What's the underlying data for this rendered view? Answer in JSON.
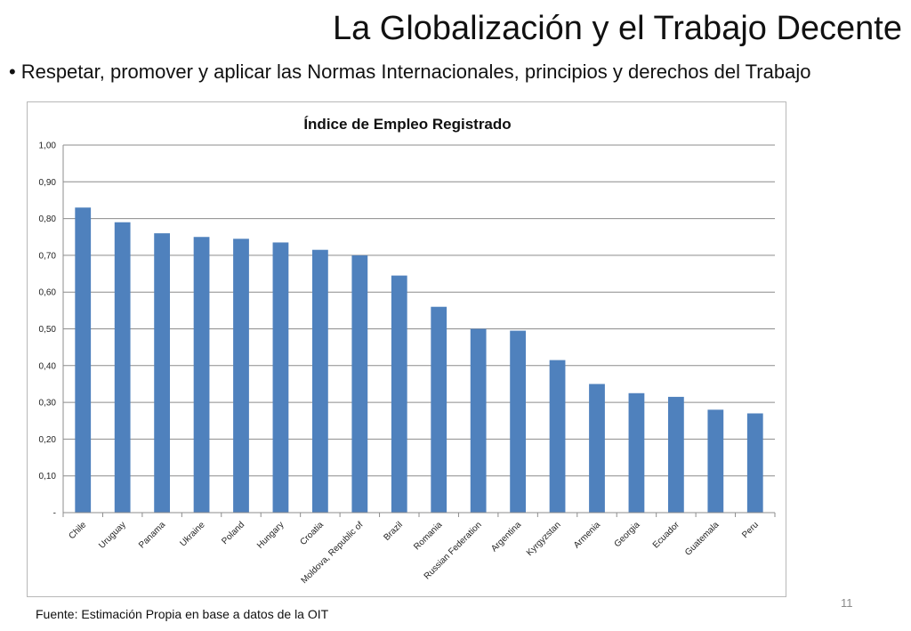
{
  "slide": {
    "title": "La Globalización y el Trabajo Decente",
    "bullet_symbol": "•",
    "bullet": "Respetar, promover y aplicar las Normas Internacionales, principios y derechos del Trabajo",
    "footer": "Fuente: Estimación Propia en base a datos de la OIT",
    "page_number": "11"
  },
  "chart_data": {
    "type": "bar",
    "title": "Índice de Empleo Registrado",
    "xlabel": "",
    "ylabel": "",
    "categories": [
      "Chile",
      "Uruguay",
      "Panama",
      "Ukraine",
      "Poland",
      "Hungary",
      "Croatia",
      "Moldova, Republic of",
      "Brazil",
      "Romania",
      "Russian Federation",
      "Argentina",
      "Kyrgyzstan",
      "Armenia",
      "Georgia",
      "Ecuador",
      "Guatemala",
      "Peru"
    ],
    "values": [
      0.83,
      0.79,
      0.76,
      0.75,
      0.745,
      0.735,
      0.715,
      0.7,
      0.645,
      0.56,
      0.5,
      0.495,
      0.415,
      0.35,
      0.325,
      0.315,
      0.28,
      0.27
    ],
    "ylim": [
      0,
      1
    ],
    "yticks": [
      0,
      0.1,
      0.2,
      0.3,
      0.4,
      0.5,
      0.6,
      0.7,
      0.8,
      0.9,
      1.0
    ],
    "ytick_labels": [
      "-",
      "0,10",
      "0,20",
      "0,30",
      "0,40",
      "0,50",
      "0,60",
      "0,70",
      "0,80",
      "0,90",
      "1,00"
    ],
    "grid": true,
    "legend": "none",
    "bar_color": "#4f81bd"
  }
}
